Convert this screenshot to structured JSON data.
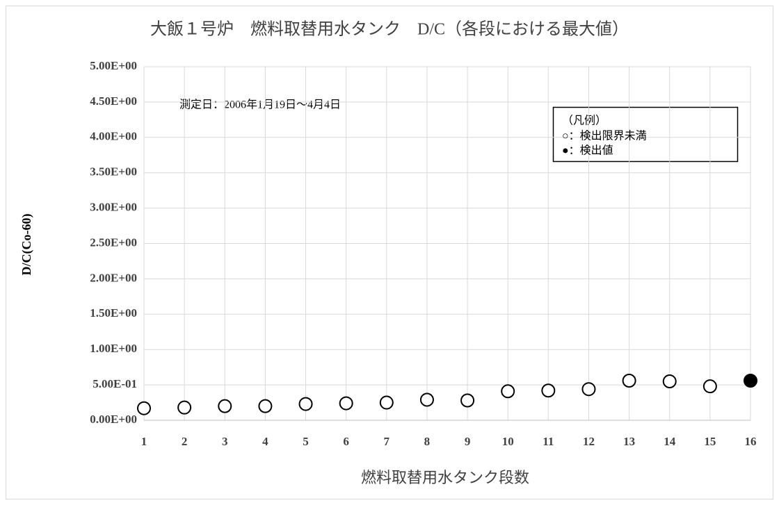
{
  "chart_data": {
    "type": "scatter",
    "title": "大飯１号炉　燃料取替用水タンク　D/C（各段における最大値）",
    "x_label": "燃料取替用水タンク段数",
    "y_label": "D/C(Co-60)",
    "annotation": "測定日：2006年1月19日～4月4日",
    "legend_title": "（凡例）",
    "series": [
      {
        "name": "○：検出限界未満",
        "color": "#ffffff",
        "stroke": "#000000",
        "x": [
          1,
          2,
          3,
          4,
          5,
          6,
          7,
          8,
          9,
          10,
          11,
          12,
          13,
          14,
          15
        ],
        "values": [
          0.17,
          0.18,
          0.2,
          0.2,
          0.23,
          0.24,
          0.25,
          0.29,
          0.28,
          0.41,
          0.42,
          0.44,
          0.56,
          0.55,
          0.48
        ]
      },
      {
        "name": "●：検出値",
        "color": "#000000",
        "stroke": "#000000",
        "x": [
          16
        ],
        "values": [
          0.56
        ]
      }
    ],
    "xlim": [
      1,
      16
    ],
    "xticks": [
      1,
      2,
      3,
      4,
      5,
      6,
      7,
      8,
      9,
      10,
      11,
      12,
      13,
      14,
      15,
      16
    ],
    "ylim": [
      0,
      5
    ],
    "yticks": [
      {
        "value": 0,
        "label": "0.00E+00"
      },
      {
        "value": 0.5,
        "label": "5.00E-01"
      },
      {
        "value": 1,
        "label": "1.00E+00"
      },
      {
        "value": 1.5,
        "label": "1.50E+00"
      },
      {
        "value": 2,
        "label": "2.00E+00"
      },
      {
        "value": 2.5,
        "label": "2.50E+00"
      },
      {
        "value": 3,
        "label": "3.00E+00"
      },
      {
        "value": 3.5,
        "label": "3.50E+00"
      },
      {
        "value": 4,
        "label": "4.00E+00"
      },
      {
        "value": 4.5,
        "label": "4.50E+00"
      },
      {
        "value": 5,
        "label": "5.00E+00"
      }
    ],
    "grid": true
  }
}
